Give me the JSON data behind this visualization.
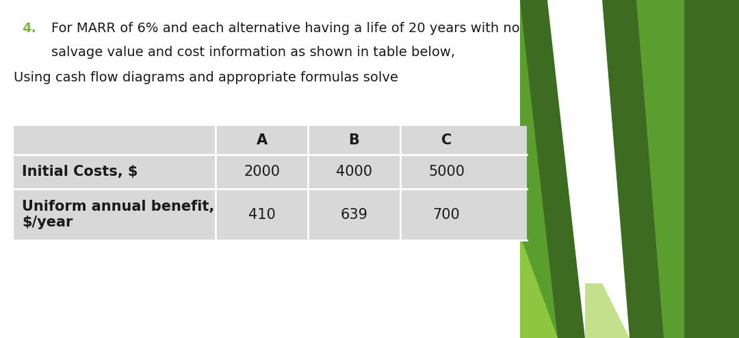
{
  "number": "4.",
  "number_color": "#7ab648",
  "line1": "For MARR of 6% and each alternative having a life of 20 years with no",
  "line2": "salvage value and cost information as shown in table below,",
  "line3": "Using cash flow diagrams and appropriate formulas solve",
  "text_color": "#1a1a1a",
  "bg_color": "#ffffff",
  "table_bg": "#d8d8d8",
  "table_header_row": [
    "",
    "A",
    "B",
    "C"
  ],
  "table_rows": [
    [
      "Initial Costs, $",
      "2000",
      "4000",
      "5000"
    ],
    [
      "Uniform annual benefit,\n$/year",
      "410",
      "639",
      "700"
    ]
  ],
  "green_dark": "#3d6b22",
  "green_mid": "#5a9e2f",
  "green_light": "#8dc63f",
  "green_pale": "#c5e08a",
  "font_size_text": 14,
  "font_size_table": 15
}
